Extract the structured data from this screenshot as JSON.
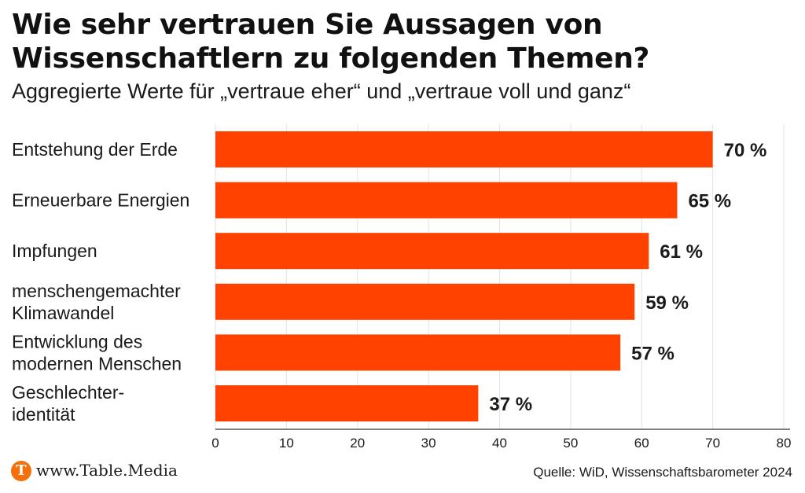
{
  "chart_data": {
    "type": "bar",
    "orientation": "horizontal",
    "title": "Wie sehr vertrauen Sie Aussagen von Wissenschaftlern zu folgenden Themen?",
    "subtitle": "Aggregierte Werte für „vertraue eher“ und „vertraue voll und ganz“",
    "categories": [
      [
        "Entstehung der Erde"
      ],
      [
        "Erneuerbare Energien"
      ],
      [
        "Impfungen"
      ],
      [
        "menschengemachter",
        "Klimawandel"
      ],
      [
        "Entwicklung des",
        "modernen Menschen"
      ],
      [
        "Geschlechter-",
        "identität"
      ]
    ],
    "values": [
      70,
      65,
      61,
      59,
      57,
      37
    ],
    "value_labels": [
      "70 %",
      "65 %",
      "61 %",
      "59 %",
      "57 %",
      "37 %"
    ],
    "xlim": [
      0,
      80
    ],
    "xticks": [
      0,
      10,
      20,
      30,
      40,
      50,
      60,
      70,
      80
    ],
    "grid": true,
    "bar_color": "#ff4200"
  },
  "footer": {
    "logo_letter": "T",
    "url": "www.Table.Media",
    "source": "Quelle: WiD, Wissenschaftsbarometer 2024"
  },
  "colors": {
    "bar": "#ff4200",
    "logo": "#f5700a",
    "grid": "#e3e3e3",
    "text": "#1a1a1a"
  }
}
